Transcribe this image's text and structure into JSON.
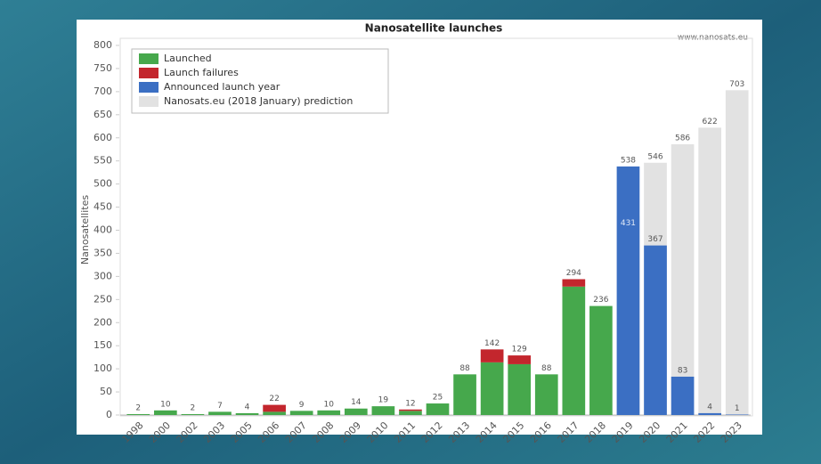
{
  "chart_data": {
    "type": "bar",
    "title": "Nanosatellite launches",
    "source": "www.nanosats.eu",
    "y_label": "Nanosatellites",
    "categories": [
      "1998",
      "2000",
      "2002",
      "2003",
      "2005",
      "2006",
      "2007",
      "2008",
      "2009",
      "2010",
      "2011",
      "2012",
      "2013",
      "2014",
      "2015",
      "2016",
      "2017",
      "2018",
      "2019",
      "2020",
      "2021",
      "2022",
      "2023"
    ],
    "series": [
      {
        "name": "Launched",
        "color": "#46a84c",
        "stack": "launch",
        "values": [
          2,
          10,
          2,
          7,
          4,
          7,
          9,
          10,
          14,
          19,
          9,
          25,
          88,
          114,
          110,
          88,
          278,
          236,
          null,
          null,
          null,
          null,
          null
        ]
      },
      {
        "name": "Launch failures",
        "color": "#c3262d",
        "stack": "launch",
        "values": [
          0,
          0,
          0,
          0,
          0,
          15,
          0,
          0,
          0,
          0,
          3,
          0,
          0,
          28,
          19,
          0,
          16,
          0,
          null,
          null,
          null,
          null,
          null
        ]
      },
      {
        "name": "Announced launch year",
        "color": "#3b6fc3",
        "stack": "announced",
        "values": [
          null,
          null,
          null,
          null,
          null,
          null,
          null,
          null,
          null,
          null,
          null,
          null,
          null,
          null,
          null,
          null,
          null,
          null,
          538,
          367,
          83,
          4,
          1
        ]
      },
      {
        "name": "Nanosats.eu (2018 January) prediction",
        "color": "#e2e2e2",
        "stack": "prediction",
        "values": [
          null,
          null,
          null,
          null,
          null,
          null,
          null,
          null,
          null,
          null,
          null,
          null,
          null,
          null,
          null,
          null,
          null,
          null,
          431,
          546,
          586,
          622,
          703
        ]
      }
    ],
    "totals": [
      2,
      10,
      2,
      7,
      4,
      22,
      9,
      10,
      14,
      19,
      12,
      25,
      88,
      142,
      129,
      88,
      294,
      236,
      null,
      null,
      null,
      null,
      null
    ],
    "ylim": [
      0,
      800
    ],
    "yticks": [
      0,
      50,
      100,
      150,
      200,
      250,
      300,
      350,
      400,
      450,
      500,
      550,
      600,
      650,
      700,
      750,
      800
    ],
    "grid": false
  }
}
